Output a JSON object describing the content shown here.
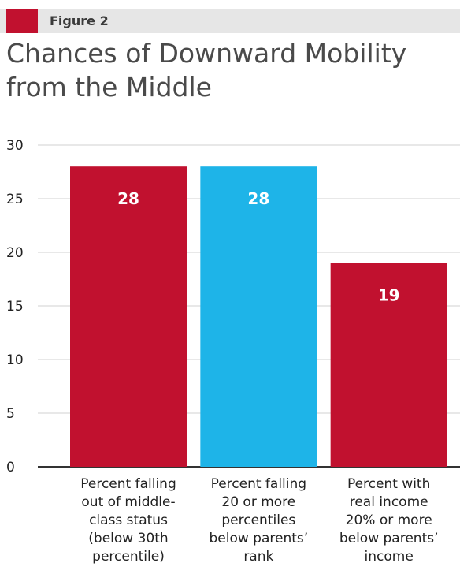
{
  "figure_label": "Figure 2",
  "title": "Chances of Downward Mobility from the Middle",
  "colors": {
    "accent": "#c1112f",
    "highlight": "#1eb4e8",
    "header_bg": "#e6e6e6",
    "grid": "#d0d0d0"
  },
  "chart_data": {
    "type": "bar",
    "title": "Chances of Downward Mobility from the Middle",
    "xlabel": "",
    "ylabel": "",
    "ylim": [
      0,
      30
    ],
    "yticks": [
      "0",
      "5",
      "10",
      "15",
      "20",
      "25",
      "30"
    ],
    "grid": true,
    "categories": [
      "Percent falling out of middle-class status (below 30th percentile)",
      "Percent falling 20 or more percentiles below parents' rank",
      "Percent with real income 20% or more below parents' income"
    ],
    "category_lines": [
      [
        "Percent falling",
        "out of middle-",
        "class status",
        "(below 30th",
        "percentile)"
      ],
      [
        "Percent falling",
        "20 or more",
        "percentiles",
        "below parents’",
        "rank"
      ],
      [
        "Percent with",
        "real income",
        "20% or more",
        "below parents’",
        "income"
      ]
    ],
    "values": [
      28,
      28,
      19
    ],
    "data_labels": [
      "28",
      "28",
      "19"
    ],
    "bar_colors": [
      "#c1112f",
      "#1eb4e8",
      "#c1112f"
    ]
  }
}
